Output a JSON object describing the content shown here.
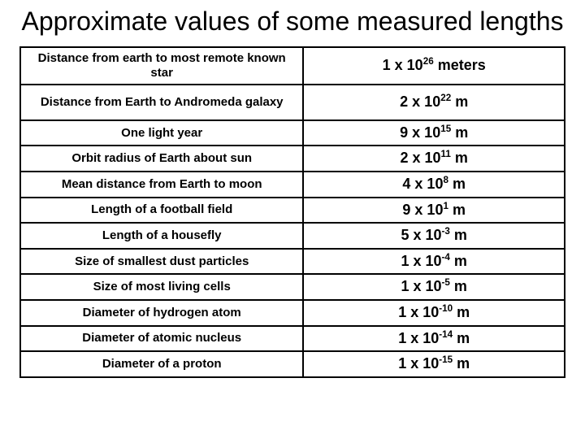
{
  "title": "Approximate values of some measured lengths",
  "rows": [
    {
      "label": "Distance from earth to most remote known star",
      "coef": "1",
      "exp": "26",
      "unit": "meters",
      "twoLine": true
    },
    {
      "label": "Distance from Earth to Andromeda galaxy",
      "coef": "2",
      "exp": "22",
      "unit": "m",
      "twoLine": true
    },
    {
      "label": "One light year",
      "coef": "9",
      "exp": "15",
      "unit": "m",
      "twoLine": false
    },
    {
      "label": "Orbit radius of Earth about sun",
      "coef": "2",
      "exp": "11",
      "unit": "m",
      "twoLine": false
    },
    {
      "label": "Mean distance from Earth to moon",
      "coef": "4",
      "exp": "8",
      "unit": "m",
      "twoLine": false
    },
    {
      "label": "Length of a football field",
      "coef": "9",
      "exp": "1",
      "unit": "m",
      "twoLine": false
    },
    {
      "label": "Length of a housefly",
      "coef": "5",
      "exp": "-3",
      "unit": "m",
      "twoLine": false
    },
    {
      "label": "Size of smallest dust particles",
      "coef": "1",
      "exp": "-4",
      "unit": "m",
      "twoLine": false
    },
    {
      "label": "Size of most living cells",
      "coef": "1",
      "exp": "-5",
      "unit": "m",
      "twoLine": false
    },
    {
      "label": "Diameter of hydrogen atom",
      "coef": "1",
      "exp": "-10",
      "unit": "m",
      "twoLine": false
    },
    {
      "label": "Diameter of atomic nucleus",
      "coef": "1",
      "exp": "-14",
      "unit": "m",
      "twoLine": false
    },
    {
      "label": "Diameter of a proton",
      "coef": "1",
      "exp": "-15",
      "unit": "m",
      "twoLine": false
    }
  ],
  "style": {
    "background_color": "#ffffff",
    "text_color": "#000000",
    "border_color": "#000000",
    "title_fontsize": 32,
    "label_fontsize": 15,
    "value_fontsize": 18,
    "font_family": "Arial"
  }
}
